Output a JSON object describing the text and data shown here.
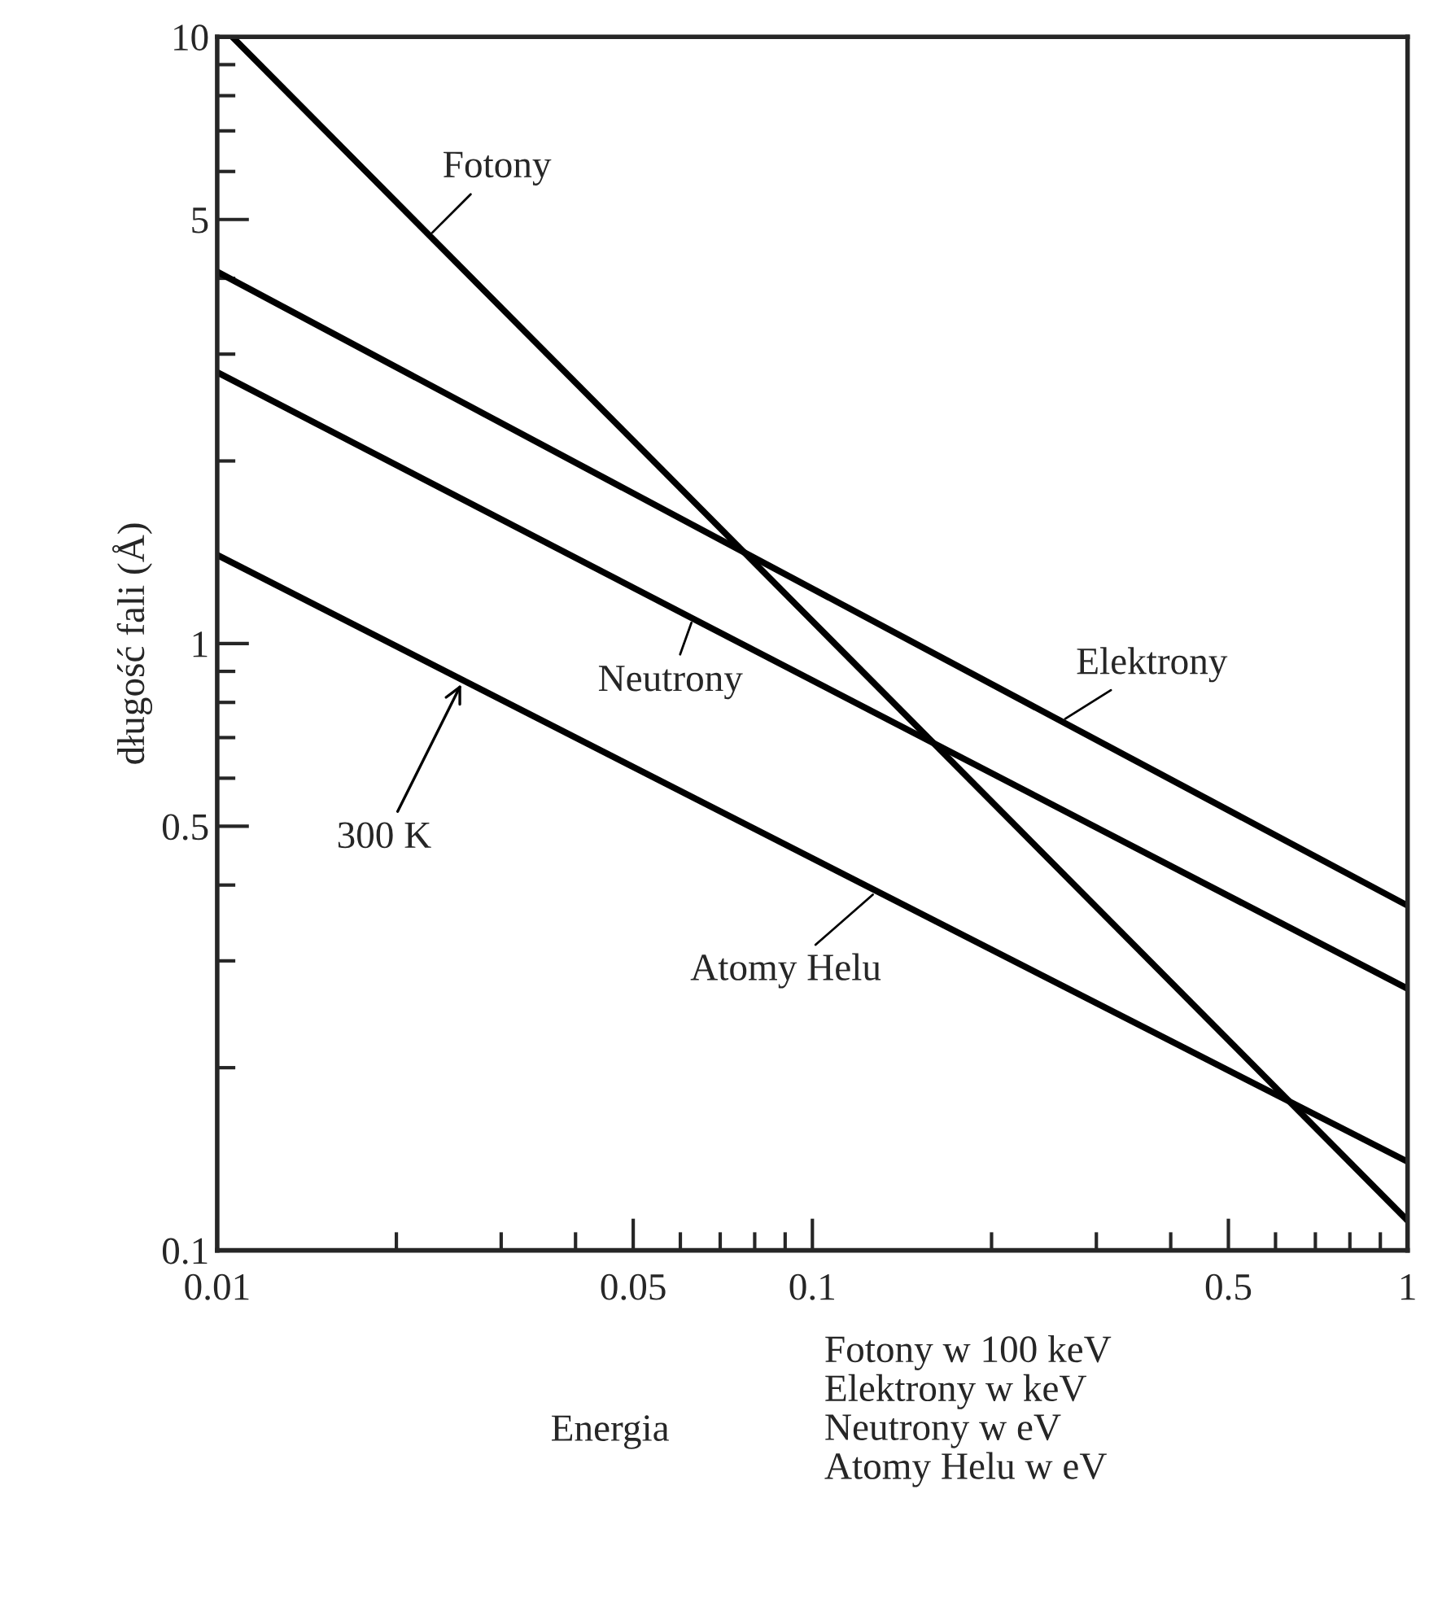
{
  "chart_data": {
    "type": "line",
    "xlabel": "Energia",
    "ylabel": "długość fali (Å)",
    "log": "xy",
    "grid": false,
    "marker": "none",
    "line_style": "solid",
    "xlim": [
      0.01,
      1
    ],
    "ylim": [
      0.1,
      10
    ],
    "xticks": [
      0.01,
      {
        "value": 0.02,
        "label": null
      },
      {
        "value": 0.03,
        "label": null
      },
      {
        "value": 0.04,
        "label": null
      },
      0.05,
      {
        "value": 0.06,
        "label": null
      },
      {
        "value": 0.07,
        "label": null
      },
      {
        "value": 0.08,
        "label": null
      },
      {
        "value": 0.09,
        "label": null
      },
      0.1,
      {
        "value": 0.2,
        "label": null
      },
      {
        "value": 0.3,
        "label": null
      },
      {
        "value": 0.4,
        "label": null
      },
      0.5,
      {
        "value": 0.6,
        "label": null
      },
      {
        "value": 0.7,
        "label": null
      },
      {
        "value": 0.8,
        "label": null
      },
      {
        "value": 0.9,
        "label": null
      },
      1
    ],
    "yticks": [
      0.1,
      {
        "value": 0.2,
        "label": null
      },
      {
        "value": 0.3,
        "label": null
      },
      {
        "value": 0.4,
        "label": null
      },
      0.5,
      {
        "value": 0.6,
        "label": null
      },
      {
        "value": 0.7,
        "label": null
      },
      {
        "value": 0.8,
        "label": null
      },
      {
        "value": 0.9,
        "label": null
      },
      1,
      {
        "value": 2,
        "label": null
      },
      {
        "value": 3,
        "label": null
      },
      {
        "value": 4,
        "label": null
      },
      5,
      {
        "value": 6,
        "label": null
      },
      {
        "value": 7,
        "label": null
      },
      {
        "value": 8,
        "label": null
      },
      {
        "value": 9,
        "label": null
      },
      10
    ],
    "series": [
      {
        "color": "#000000",
        "x": [
          0.0106,
          1
        ],
        "values": [
          10,
          0.112
        ]
      },
      {
        "color": "#000000",
        "x": [
          0.01,
          1
        ],
        "values": [
          4.1,
          0.37
        ]
      },
      {
        "color": "#000000",
        "x": [
          0.01,
          1
        ],
        "values": [
          2.8,
          0.27
        ]
      },
      {
        "color": "#000000",
        "x": [
          0.01,
          1
        ],
        "values": [
          1.4,
          0.14
        ]
      }
    ],
    "annotations": [
      {
        "text": "Fotony",
        "x": 0.0227,
        "y": 4.7
      },
      {
        "text": "Elektrony",
        "x": 0.262,
        "y": 0.745
      },
      {
        "text": "Neutrony",
        "x": 0.063,
        "y": 1.1
      },
      {
        "text": "Atomy Helu",
        "x": 0.128,
        "y": 0.39
      },
      {
        "text": "300 K",
        "x": 0.0259,
        "y": 0.87
      },
      "Fotony w 100 keV\nElektrony w keV\nNeutrony w eV\nAtomy Helu w eV"
    ]
  }
}
